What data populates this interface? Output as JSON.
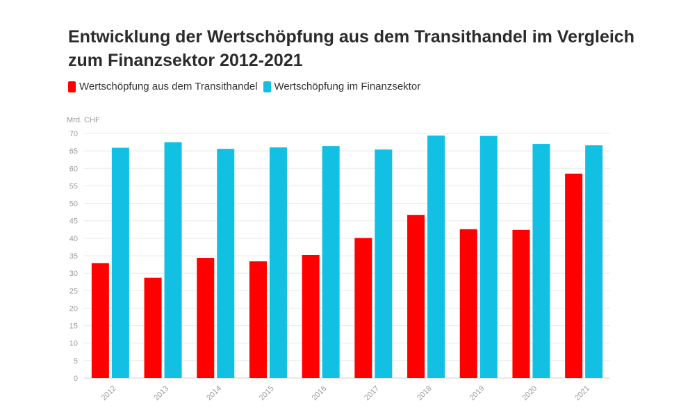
{
  "chart_data": {
    "type": "bar",
    "title": "Entwicklung der Wertschöpfung aus dem Transithandel im Vergleich zum Finanzsektor 2012-2021",
    "ylabel": "Mrd. CHF",
    "xlabel": "",
    "ylim": [
      0,
      70
    ],
    "yticks": [
      0,
      5,
      10,
      15,
      20,
      25,
      30,
      35,
      40,
      45,
      50,
      55,
      60,
      65,
      70
    ],
    "grid": true,
    "legend_position": "top-left",
    "categories": [
      "2012",
      "2013",
      "2014",
      "2015",
      "2016",
      "2017",
      "2018",
      "2019",
      "2020",
      "2021"
    ],
    "series": [
      {
        "name": "Wertschöpfung aus dem Transithandel",
        "color": "#ff0000",
        "values": [
          32.9,
          28.7,
          34.4,
          33.4,
          35.2,
          40.1,
          46.7,
          42.6,
          42.4,
          58.5
        ]
      },
      {
        "name": "Wertschöpfung im Finanzsektor",
        "color": "#12c0e3",
        "values": [
          65.9,
          67.5,
          65.6,
          66.0,
          66.4,
          65.4,
          69.4,
          69.3,
          67.0,
          66.6
        ]
      }
    ]
  }
}
